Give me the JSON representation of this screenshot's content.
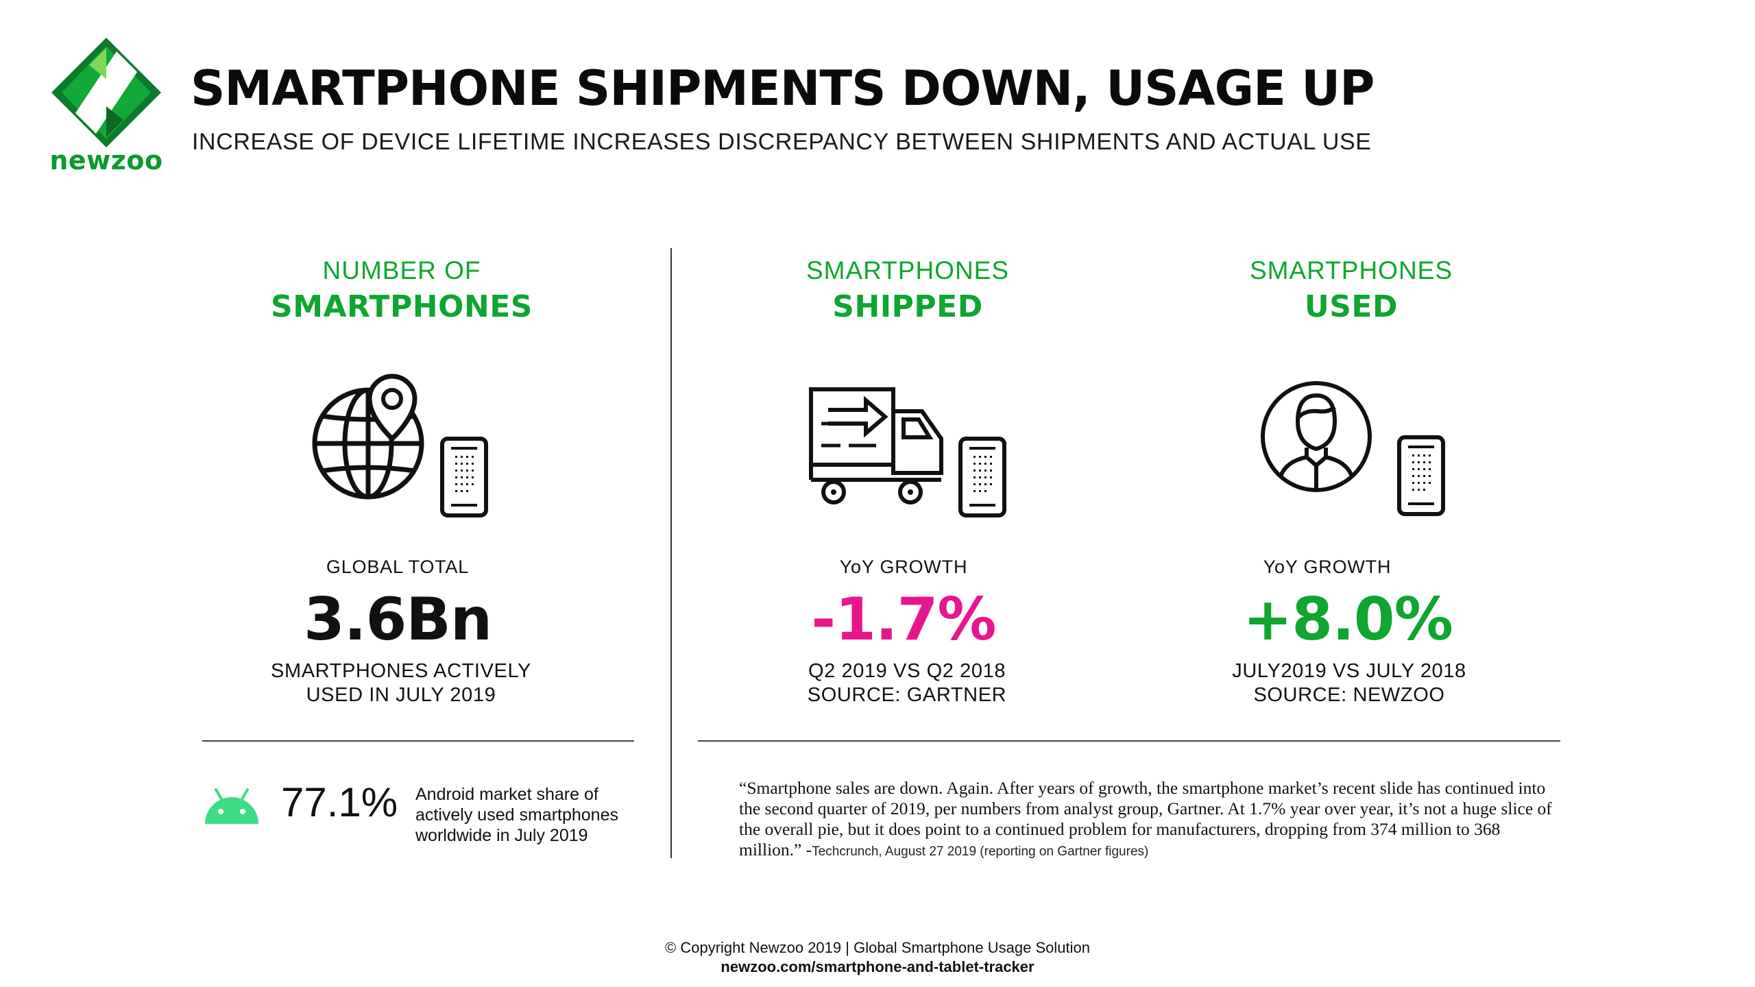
{
  "header": {
    "logo_text": "newzoo",
    "title": "SMARTPHONE SHIPMENTS DOWN, USAGE UP",
    "subtitle": "INCREASE OF DEVICE LIFETIME INCREASES DISCREPANCY BETWEEN SHIPMENTS AND ACTUAL USE"
  },
  "columns": [
    {
      "heading_line1": "NUMBER OF",
      "heading_line2": "SMARTPHONES",
      "icon": "globe-location-pin-icon",
      "label": "GLOBAL TOTAL",
      "value": "3.6Bn",
      "value_color": "#111111",
      "note_line1": "SMARTPHONES ACTIVELY",
      "note_line2": "USED IN JULY 2019"
    },
    {
      "heading_line1": "SMARTPHONES",
      "heading_line2": "SHIPPED",
      "icon": "delivery-truck-icon",
      "label": "YoY GROWTH",
      "value": "-1.7%",
      "value_color": "#e8168c",
      "note_line1": "Q2 2019 VS Q2 2018",
      "note_line2": "SOURCE: GARTNER"
    },
    {
      "heading_line1": "SMARTPHONES",
      "heading_line2": "USED",
      "icon": "user-avatar-icon",
      "label": "YoY GROWTH",
      "value": "+8.0%",
      "value_color": "#0fa52f",
      "note_line1": "JULY2019 VS JULY 2018",
      "note_line2": "SOURCE: NEWZOO"
    }
  ],
  "android": {
    "icon": "android-icon",
    "value": "77.1%",
    "description": "Android market share of actively used smartphones worldwide in July 2019"
  },
  "quote": {
    "text": "“Smartphone sales are down. Again. After years of growth, the smartphone market’s recent slide has continued into the second quarter of 2019, per numbers from analyst group, Gartner. At 1.7% year over year, it’s not a huge slice of the overall pie, but it does point to a continued problem for manufacturers, dropping from 374 million to 368 million.” -",
    "source": "Techcrunch, August 27 2019 (reporting on Gartner figures)"
  },
  "footer": {
    "copyright": "© Copyright Newzoo 2019 | Global Smartphone Usage Solution",
    "url": "newzoo.com/smartphone-and-tablet-tracker"
  },
  "colors": {
    "brand_green": "#0fa52f",
    "negative_pink": "#e8168c",
    "android_green": "#3ddc84"
  }
}
